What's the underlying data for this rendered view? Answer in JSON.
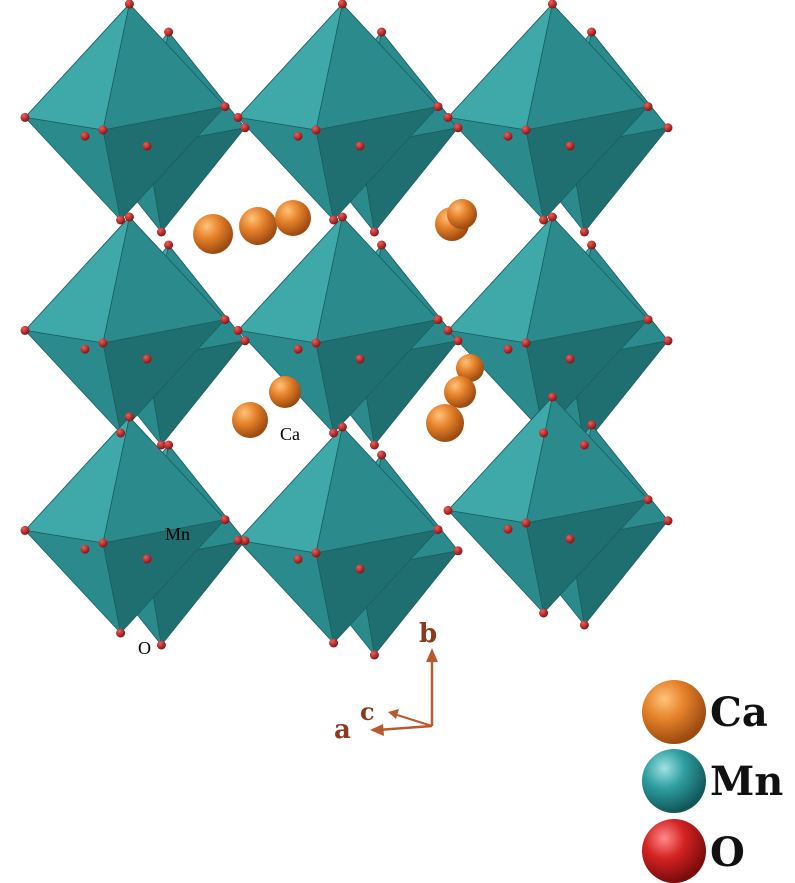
{
  "structure": {
    "atom_labels": {
      "ca": "Ca",
      "mn": "Mn",
      "o": "O"
    },
    "axes": {
      "a": "a",
      "b": "b",
      "c": "c"
    },
    "legend": [
      {
        "label": "Ca",
        "color": "#e07a25"
      },
      {
        "label": "Mn",
        "color": "#2a9a9c"
      },
      {
        "label": "O",
        "color": "#d02020"
      }
    ],
    "colors": {
      "octahedron_light": "#3fa9a9",
      "octahedron_mid": "#2b8b8c",
      "octahedron_dark": "#1f6e70",
      "oxygen": "#c3242a",
      "calcium": "#e07a25",
      "axis_arrow": "#b85a2e"
    }
  }
}
